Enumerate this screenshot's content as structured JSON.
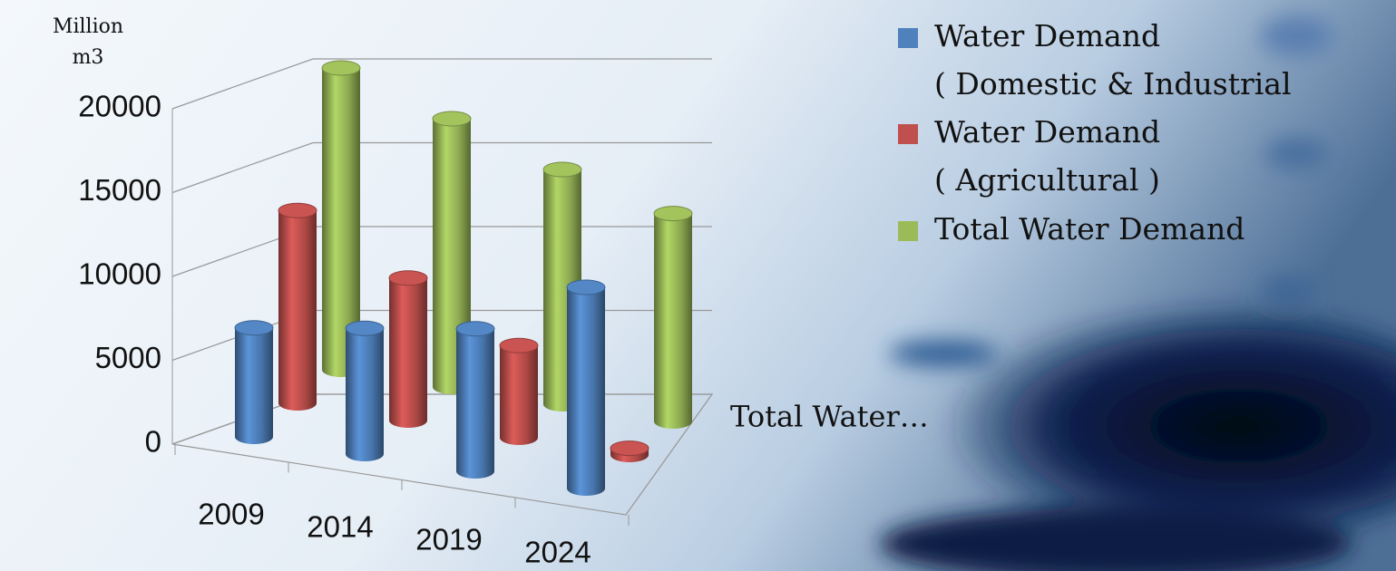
{
  "chart_data": {
    "type": "bar3d",
    "ylabel": "Million\nm3",
    "categories": [
      "2009",
      "2014",
      "2019",
      "2024"
    ],
    "series": [
      {
        "name": "Water Demand\n( Domestic & Industrial",
        "color": "#4f81bd",
        "values": [
          6500,
          7500,
          8500,
          12000
        ]
      },
      {
        "name": "Water Demand\n( Agricultural )",
        "color": "#c0504d",
        "values": [
          11500,
          8500,
          5500,
          400
        ]
      },
      {
        "name": "Total Water Demand",
        "color": "#9bbb59",
        "values": [
          18000,
          16000,
          14000,
          12400
        ]
      }
    ],
    "zlabel": "Total Water…",
    "ylim": [
      0,
      20000
    ],
    "yticks": [
      0,
      5000,
      10000,
      15000,
      20000
    ],
    "grid": true,
    "legend": "upper right"
  }
}
